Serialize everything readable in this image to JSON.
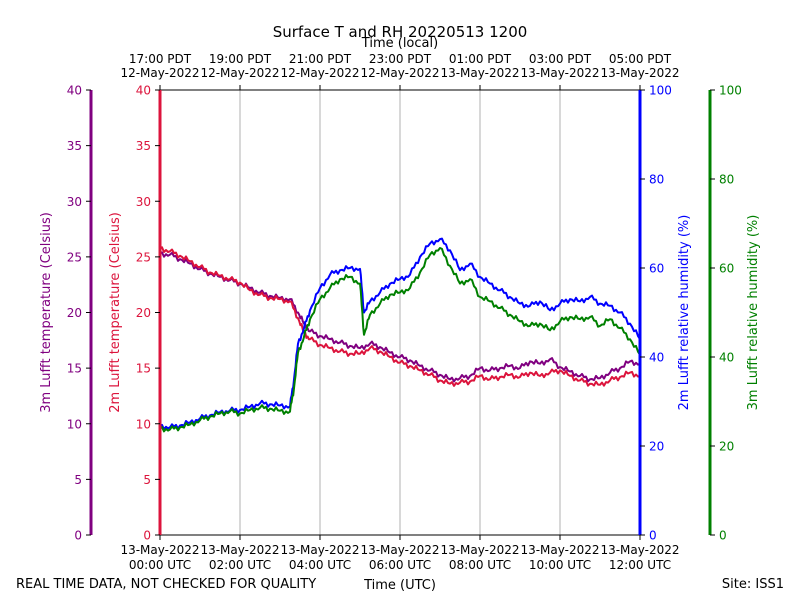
{
  "chart_data": {
    "type": "line",
    "title": "Surface T and RH 20220513 1200",
    "top_xlabel": "Time (local)",
    "bottom_xlabel": "Time (UTC)",
    "footer_left": "REAL TIME DATA, NOT CHECKED FOR QUALITY",
    "footer_right": "Site: ISS1",
    "x_hours_utc": [
      0,
      12
    ],
    "x_ticks": [
      {
        "hour": 0,
        "bottom": [
          "13-May-2022",
          "00:00 UTC"
        ],
        "top": [
          "17:00 PDT",
          "12-May-2022"
        ]
      },
      {
        "hour": 2,
        "bottom": [
          "13-May-2022",
          "02:00 UTC"
        ],
        "top": [
          "19:00 PDT",
          "12-May-2022"
        ]
      },
      {
        "hour": 4,
        "bottom": [
          "13-May-2022",
          "04:00 UTC"
        ],
        "top": [
          "21:00 PDT",
          "12-May-2022"
        ]
      },
      {
        "hour": 6,
        "bottom": [
          "13-May-2022",
          "06:00 UTC"
        ],
        "top": [
          "23:00 PDT",
          "12-May-2022"
        ]
      },
      {
        "hour": 8,
        "bottom": [
          "13-May-2022",
          "08:00 UTC"
        ],
        "top": [
          "01:00 PDT",
          "13-May-2022"
        ]
      },
      {
        "hour": 10,
        "bottom": [
          "13-May-2022",
          "10:00 UTC"
        ],
        "top": [
          "03:00 PDT",
          "13-May-2022"
        ]
      },
      {
        "hour": 12,
        "bottom": [
          "13-May-2022",
          "12:00 UTC"
        ],
        "top": [
          "05:00 PDT",
          "13-May-2022"
        ]
      }
    ],
    "axes": {
      "t3m": {
        "label": "3m Lufft temperature (Celsius)",
        "color": "#800080",
        "ylim": [
          0,
          40
        ],
        "ticks": [
          0,
          5,
          10,
          15,
          20,
          25,
          30,
          35,
          40
        ]
      },
      "t2m": {
        "label": "2m Lufft temperature (Celsius)",
        "color": "#dc143c",
        "ylim": [
          0,
          40
        ],
        "ticks": [
          0,
          5,
          10,
          15,
          20,
          25,
          30,
          35,
          40
        ]
      },
      "rh2m": {
        "label": "2m Lufft relative humidity (%)",
        "color": "#0000ff",
        "ylim": [
          0,
          100
        ],
        "ticks": [
          0,
          20,
          40,
          60,
          80,
          100
        ]
      },
      "rh3m": {
        "label": "3m Lufft relative humidity (%)",
        "color": "#008000",
        "ylim": [
          0,
          100
        ],
        "ticks": [
          0,
          20,
          40,
          60,
          80,
          100
        ]
      }
    },
    "series": [
      {
        "name": "3m Lufft temperature",
        "axis": "t3m",
        "color": "#800080",
        "points": [
          [
            0,
            25.3
          ],
          [
            0.25,
            25.2
          ],
          [
            0.5,
            24.8
          ],
          [
            0.75,
            24.4
          ],
          [
            1,
            23.9
          ],
          [
            1.25,
            23.5
          ],
          [
            1.5,
            23.2
          ],
          [
            1.75,
            22.9
          ],
          [
            2,
            22.6
          ],
          [
            2.25,
            22.2
          ],
          [
            2.5,
            21.8
          ],
          [
            2.75,
            21.5
          ],
          [
            3,
            21.3
          ],
          [
            3.25,
            21.2
          ],
          [
            3.45,
            20.0
          ],
          [
            3.6,
            19.0
          ],
          [
            3.75,
            18.3
          ],
          [
            4,
            17.9
          ],
          [
            4.25,
            17.6
          ],
          [
            4.5,
            17.3
          ],
          [
            4.75,
            17.0
          ],
          [
            5,
            16.8
          ],
          [
            5.25,
            17.2
          ],
          [
            5.5,
            16.9
          ],
          [
            5.75,
            16.4
          ],
          [
            6,
            16.0
          ],
          [
            6.25,
            15.7
          ],
          [
            6.5,
            15.2
          ],
          [
            6.75,
            14.8
          ],
          [
            7,
            14.4
          ],
          [
            7.25,
            14.0
          ],
          [
            7.5,
            14.1
          ],
          [
            7.75,
            14.3
          ],
          [
            8,
            15.0
          ],
          [
            8.25,
            14.8
          ],
          [
            8.5,
            15.0
          ],
          [
            8.75,
            15.2
          ],
          [
            9,
            15.0
          ],
          [
            9.25,
            15.6
          ],
          [
            9.5,
            15.4
          ],
          [
            9.75,
            15.8
          ],
          [
            10,
            15.1
          ],
          [
            10.25,
            14.7
          ],
          [
            10.5,
            14.3
          ],
          [
            10.75,
            14.0
          ],
          [
            11,
            14.1
          ],
          [
            11.25,
            14.6
          ],
          [
            11.5,
            15.0
          ],
          [
            11.75,
            15.6
          ],
          [
            12,
            15.4
          ]
        ]
      },
      {
        "name": "2m Lufft temperature",
        "axis": "t2m",
        "color": "#dc143c",
        "points": [
          [
            0,
            25.8
          ],
          [
            0.25,
            25.5
          ],
          [
            0.5,
            25.1
          ],
          [
            0.75,
            24.6
          ],
          [
            1,
            24.1
          ],
          [
            1.25,
            23.6
          ],
          [
            1.5,
            23.3
          ],
          [
            1.75,
            23.0
          ],
          [
            2,
            22.7
          ],
          [
            2.25,
            22.0
          ],
          [
            2.5,
            21.6
          ],
          [
            2.75,
            21.3
          ],
          [
            3,
            21.2
          ],
          [
            3.25,
            21.0
          ],
          [
            3.45,
            19.5
          ],
          [
            3.6,
            18.2
          ],
          [
            3.75,
            17.6
          ],
          [
            4,
            17.1
          ],
          [
            4.25,
            16.8
          ],
          [
            4.5,
            16.5
          ],
          [
            4.75,
            16.3
          ],
          [
            5,
            16.3
          ],
          [
            5.25,
            16.8
          ],
          [
            5.5,
            16.5
          ],
          [
            5.75,
            16.0
          ],
          [
            6,
            15.5
          ],
          [
            6.25,
            15.2
          ],
          [
            6.5,
            14.8
          ],
          [
            6.75,
            14.4
          ],
          [
            7,
            13.9
          ],
          [
            7.25,
            13.6
          ],
          [
            7.5,
            13.7
          ],
          [
            7.75,
            13.8
          ],
          [
            8,
            14.3
          ],
          [
            8.25,
            14.0
          ],
          [
            8.5,
            14.2
          ],
          [
            8.75,
            14.4
          ],
          [
            9,
            14.2
          ],
          [
            9.25,
            14.6
          ],
          [
            9.5,
            14.3
          ],
          [
            9.75,
            14.6
          ],
          [
            10,
            14.8
          ],
          [
            10.25,
            14.3
          ],
          [
            10.5,
            13.9
          ],
          [
            10.75,
            13.6
          ],
          [
            11,
            13.5
          ],
          [
            11.25,
            13.9
          ],
          [
            11.5,
            14.2
          ],
          [
            11.75,
            14.6
          ],
          [
            12,
            14.3
          ]
        ]
      },
      {
        "name": "2m Lufft relative humidity",
        "axis": "rh2m",
        "color": "#0000ff",
        "points": [
          [
            0,
            24.5
          ],
          [
            0.25,
            24.2
          ],
          [
            0.5,
            24.6
          ],
          [
            0.75,
            25.3
          ],
          [
            1,
            26.2
          ],
          [
            1.25,
            26.9
          ],
          [
            1.5,
            27.6
          ],
          [
            1.75,
            28.0
          ],
          [
            2,
            28.1
          ],
          [
            2.25,
            28.8
          ],
          [
            2.5,
            29.6
          ],
          [
            2.75,
            29.4
          ],
          [
            3,
            29.1
          ],
          [
            3.25,
            28.9
          ],
          [
            3.35,
            35.0
          ],
          [
            3.45,
            43.0
          ],
          [
            3.6,
            46.5
          ],
          [
            3.75,
            50.5
          ],
          [
            4,
            55.5
          ],
          [
            4.25,
            58.5
          ],
          [
            4.5,
            59.5
          ],
          [
            4.75,
            60.0
          ],
          [
            5,
            59.8
          ],
          [
            5.1,
            50.0
          ],
          [
            5.25,
            52.5
          ],
          [
            5.5,
            54.5
          ],
          [
            5.75,
            56.5
          ],
          [
            6,
            57.5
          ],
          [
            6.25,
            58.5
          ],
          [
            6.5,
            62.5
          ],
          [
            6.75,
            65.5
          ],
          [
            7,
            66.5
          ],
          [
            7.25,
            64.0
          ],
          [
            7.5,
            59.5
          ],
          [
            7.75,
            61.0
          ],
          [
            8,
            58.0
          ],
          [
            8.25,
            56.5
          ],
          [
            8.5,
            55.0
          ],
          [
            8.75,
            53.5
          ],
          [
            9,
            52.0
          ],
          [
            9.25,
            51.5
          ],
          [
            9.5,
            52.5
          ],
          [
            9.75,
            50.5
          ],
          [
            10,
            52.0
          ],
          [
            10.25,
            53.0
          ],
          [
            10.5,
            52.5
          ],
          [
            10.75,
            53.5
          ],
          [
            11,
            52.0
          ],
          [
            11.25,
            51.5
          ],
          [
            11.5,
            50.0
          ],
          [
            11.75,
            47.5
          ],
          [
            12,
            44.0
          ]
        ]
      },
      {
        "name": "3m Lufft relative humidity",
        "axis": "rh3m",
        "color": "#008000",
        "points": [
          [
            0,
            24.0
          ],
          [
            0.25,
            23.7
          ],
          [
            0.5,
            24.2
          ],
          [
            0.75,
            24.8
          ],
          [
            1,
            25.8
          ],
          [
            1.25,
            26.6
          ],
          [
            1.5,
            27.3
          ],
          [
            1.75,
            27.8
          ],
          [
            2,
            27.3
          ],
          [
            2.25,
            28.1
          ],
          [
            2.5,
            28.6
          ],
          [
            2.75,
            28.4
          ],
          [
            3,
            27.9
          ],
          [
            3.25,
            27.7
          ],
          [
            3.35,
            33.0
          ],
          [
            3.45,
            41.0
          ],
          [
            3.6,
            44.5
          ],
          [
            3.75,
            48.5
          ],
          [
            4,
            53.0
          ],
          [
            4.25,
            55.5
          ],
          [
            4.5,
            57.5
          ],
          [
            4.75,
            58.0
          ],
          [
            5,
            56.5
          ],
          [
            5.1,
            45.0
          ],
          [
            5.25,
            49.5
          ],
          [
            5.5,
            52.0
          ],
          [
            5.75,
            54.0
          ],
          [
            6,
            54.5
          ],
          [
            6.25,
            55.5
          ],
          [
            6.5,
            59.0
          ],
          [
            6.75,
            63.0
          ],
          [
            7,
            64.5
          ],
          [
            7.25,
            60.5
          ],
          [
            7.5,
            56.5
          ],
          [
            7.75,
            57.5
          ],
          [
            8,
            53.5
          ],
          [
            8.25,
            52.5
          ],
          [
            8.5,
            51.0
          ],
          [
            8.75,
            49.5
          ],
          [
            9,
            48.0
          ],
          [
            9.25,
            47.0
          ],
          [
            9.5,
            47.5
          ],
          [
            9.75,
            46.0
          ],
          [
            10,
            48.0
          ],
          [
            10.25,
            49.0
          ],
          [
            10.5,
            48.5
          ],
          [
            10.75,
            49.0
          ],
          [
            11,
            47.0
          ],
          [
            11.25,
            48.5
          ],
          [
            11.5,
            46.5
          ],
          [
            11.75,
            44.0
          ],
          [
            12,
            40.5
          ]
        ]
      }
    ]
  }
}
